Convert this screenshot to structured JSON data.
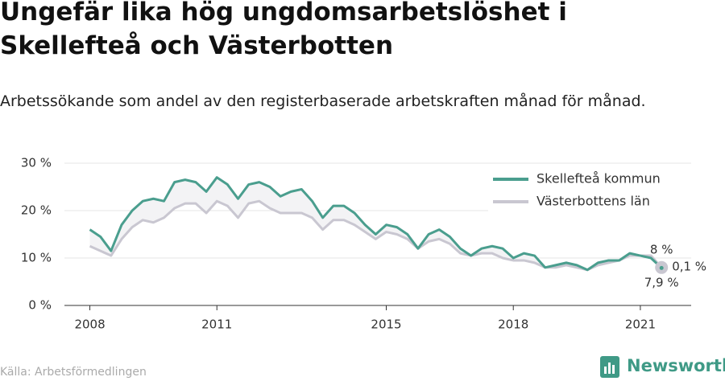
{
  "chart_data": {
    "type": "line",
    "title": "Ungefär lika hög ungdomsarbetslöshet i Skellefteå och Västerbotten",
    "subtitle": "Arbetssökande som andel av den registerbaserade arbetskraften månad för månad.",
    "source": "Källa: Arbetsförmedlingen",
    "brand": "Newsworthy",
    "annotation": "0,1 %",
    "x": [
      2008,
      2008.25,
      2008.5,
      2008.75,
      2009,
      2009.25,
      2009.5,
      2009.75,
      2010,
      2010.25,
      2010.5,
      2010.75,
      2011,
      2011.25,
      2011.5,
      2011.75,
      2012,
      2012.25,
      2012.5,
      2012.75,
      2013,
      2013.25,
      2013.5,
      2013.75,
      2014,
      2014.25,
      2014.5,
      2014.75,
      2015,
      2015.25,
      2015.5,
      2015.75,
      2016,
      2016.25,
      2016.5,
      2016.75,
      2017,
      2017.25,
      2017.5,
      2017.75,
      2018,
      2018.25,
      2018.5,
      2018.75,
      2019,
      2019.25,
      2019.5,
      2019.75,
      2020,
      2020.25,
      2020.5,
      2020.75,
      2021,
      2021.25,
      2021.5
    ],
    "series": [
      {
        "name": "Skellefteå kommun",
        "color": "#4a9e8e",
        "values": [
          16,
          14.5,
          11.5,
          17,
          20,
          22,
          22.5,
          22,
          26,
          26.5,
          26,
          24,
          27,
          25.5,
          22.5,
          25.5,
          26,
          25,
          23,
          24,
          24.5,
          22,
          18.5,
          21,
          21,
          19.5,
          17,
          15,
          17,
          16.5,
          15,
          12,
          15,
          16,
          14.5,
          12,
          10.5,
          12,
          12.5,
          12,
          10,
          11,
          10.5,
          8,
          8.5,
          9,
          8.5,
          7.5,
          9,
          9.5,
          9.5,
          11,
          10.5,
          10,
          7.9
        ],
        "value_labels": [
          null,
          null,
          null,
          null,
          null,
          null,
          null,
          null,
          null,
          null,
          null,
          null,
          null,
          null,
          null,
          null,
          null,
          null,
          null,
          null,
          null,
          null,
          null,
          null,
          null,
          null,
          null,
          null,
          null,
          null,
          null,
          null,
          null,
          null,
          null,
          null,
          null,
          null,
          null,
          null,
          null,
          null,
          null,
          null,
          null,
          null,
          null,
          null,
          null,
          null,
          null,
          null,
          null,
          null,
          "7,9 %"
        ]
      },
      {
        "name": "Västerbottens län",
        "color": "#c9c7d1",
        "values": [
          12.5,
          11.5,
          10.5,
          14,
          16.5,
          18,
          17.5,
          18.5,
          20.5,
          21.5,
          21.5,
          19.5,
          22,
          21,
          18.5,
          21.5,
          22,
          20.5,
          19.5,
          19.5,
          19.5,
          18.5,
          16,
          18,
          18,
          17,
          15.5,
          14,
          15.5,
          15,
          14,
          12,
          13.5,
          14,
          13,
          11,
          10.5,
          11,
          11,
          10,
          9.5,
          9.5,
          9,
          8,
          8,
          8.5,
          8,
          7.5,
          8.5,
          9,
          9.5,
          10.5,
          10.5,
          10.5,
          8
        ],
        "value_labels": [
          null,
          null,
          null,
          null,
          null,
          null,
          null,
          null,
          null,
          null,
          null,
          null,
          null,
          null,
          null,
          null,
          null,
          null,
          null,
          null,
          null,
          null,
          null,
          null,
          null,
          null,
          null,
          null,
          null,
          null,
          null,
          null,
          null,
          null,
          null,
          null,
          null,
          null,
          null,
          null,
          null,
          null,
          null,
          null,
          null,
          null,
          null,
          null,
          null,
          null,
          null,
          null,
          null,
          null,
          "8 %"
        ]
      }
    ],
    "xlim": [
      2007.4,
      2022.2
    ],
    "xticks": [
      2008,
      2011,
      2015,
      2018,
      2021
    ],
    "ylim": [
      0,
      30
    ],
    "yticks": [
      {
        "value": 0,
        "label": "0 %"
      },
      {
        "value": 10,
        "label": "10 %"
      },
      {
        "value": 20,
        "label": "20 %"
      },
      {
        "value": 30,
        "label": "30 %"
      }
    ],
    "grid": true,
    "legend": "top-right"
  }
}
